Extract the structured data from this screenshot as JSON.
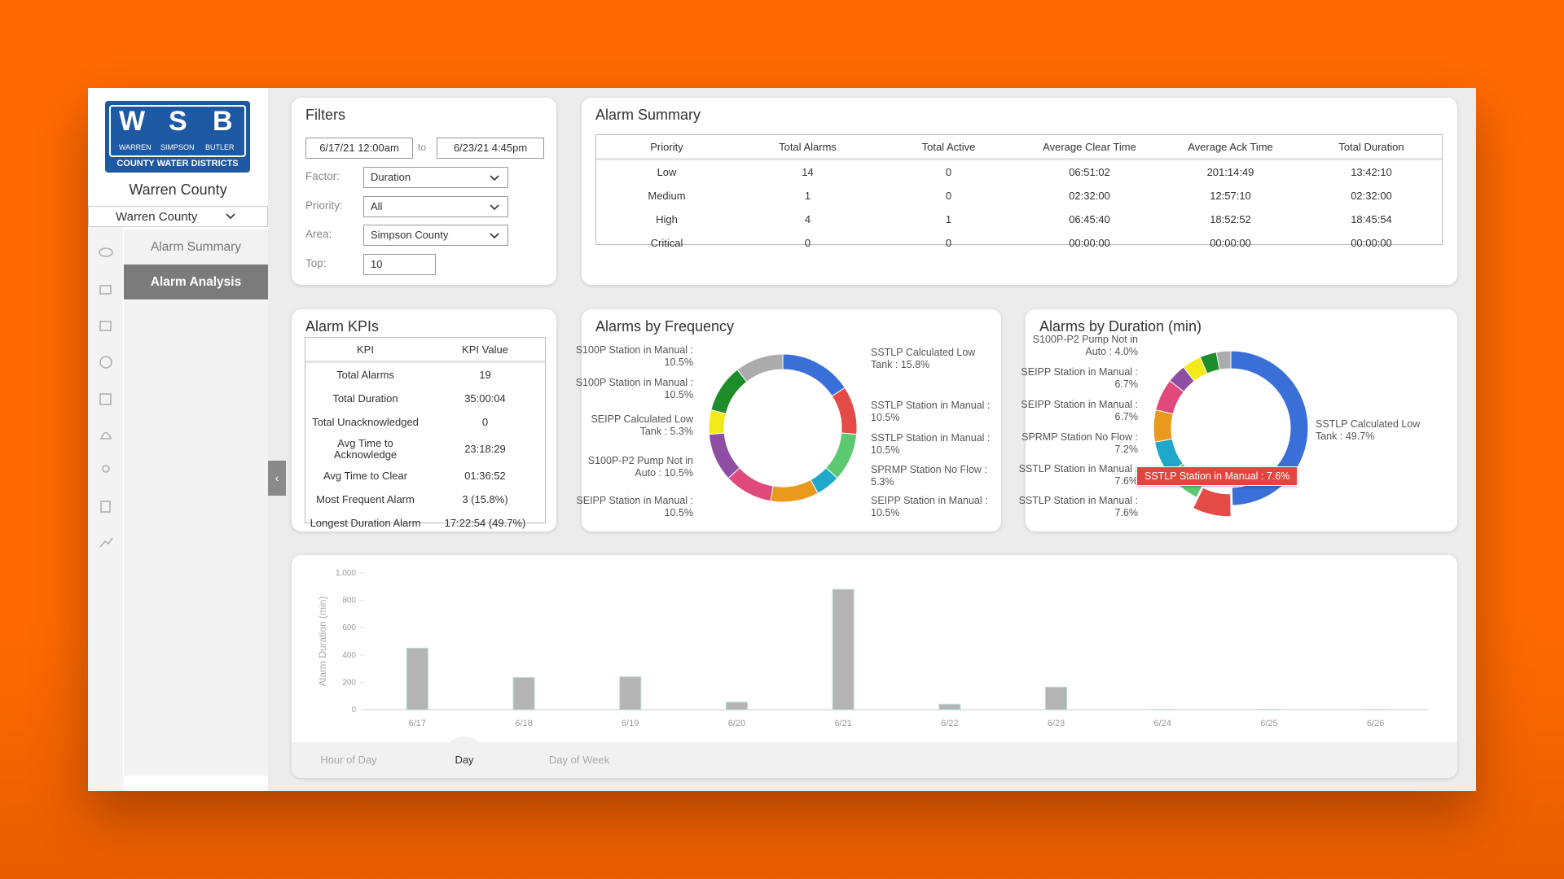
{
  "logo": {
    "initials": [
      "W",
      "S",
      "B"
    ],
    "names": [
      "WARREN",
      "SIMPSON",
      "BUTLER"
    ],
    "tagline": "COUNTY WATER DISTRICTS"
  },
  "sidebar": {
    "title": "Warren County",
    "select": "Warren County",
    "nav": [
      {
        "label": "Alarm Summary",
        "active": false
      },
      {
        "label": "Alarm Analysis",
        "active": true
      }
    ]
  },
  "filters": {
    "title": "Filters",
    "from": "6/17/21 12:00am",
    "separator": "to",
    "to": "6/23/21 4:45pm",
    "fields": [
      {
        "label": "Factor:",
        "value": "Duration",
        "kind": "select"
      },
      {
        "label": "Priority:",
        "value": "All",
        "kind": "select"
      },
      {
        "label": "Area:",
        "value": "Simpson County",
        "kind": "select"
      },
      {
        "label": "Top:",
        "value": "10",
        "kind": "input"
      }
    ]
  },
  "summary": {
    "title": "Alarm Summary",
    "columns": [
      "Priority",
      "Total Alarms",
      "Total Active",
      "Average Clear Time",
      "Average Ack Time",
      "Total Duration"
    ],
    "rows": [
      [
        "Low",
        "14",
        "0",
        "06:51:02",
        "201:14:49",
        "13:42:10"
      ],
      [
        "Medium",
        "1",
        "0",
        "02:32:00",
        "12:57:10",
        "02:32:00"
      ],
      [
        "High",
        "4",
        "1",
        "06:45:40",
        "18:52:52",
        "18:45:54"
      ],
      [
        "Critical",
        "0",
        "0",
        "00:00:00",
        "00:00:00",
        "00:00:00"
      ]
    ]
  },
  "kpis": {
    "title": "Alarm KPIs",
    "columns": [
      "KPI",
      "KPI Value"
    ],
    "rows": [
      [
        "Total Alarms",
        "19"
      ],
      [
        "Total Duration",
        "35:00:04"
      ],
      [
        "Total Unacknowledged",
        "0"
      ],
      [
        "Avg Time to Acknowledge",
        "23:18:29"
      ],
      [
        "Avg Time to Clear",
        "01:36:52"
      ],
      [
        "Most Frequent Alarm",
        "3 (15.8%)"
      ],
      [
        "Longest Duration Alarm",
        "17:22:54 (49.7%)"
      ]
    ]
  },
  "frequency": {
    "type": "pie",
    "title": "Alarms by Frequency",
    "labels": [
      "SSTLP Calculated Low Tank : 15.8%",
      "SSTLP Station in Manual : 10.5%",
      "SSTLP Station in Manual : 10.5%",
      "SPRMP Station No Flow : 5.3%",
      "SEIPP Station in Manual : 10.5%",
      "SEIPP Station in Manual : 10.5%",
      "S100P-P2 Pump Not in Auto : 10.5%",
      "SEIPP Calculated Low Tank : 5.3%",
      "S100P Station in Manual : 10.5%",
      "S100P Station in Manual : 10.5%"
    ],
    "values": [
      15.8,
      10.5,
      10.5,
      5.3,
      10.5,
      10.5,
      10.5,
      5.3,
      10.5,
      10.5
    ],
    "colors": [
      "#3a6fd8",
      "#e44b47",
      "#5cc96f",
      "#1fa8c9",
      "#e99a1c",
      "#e0497c",
      "#8e4fa3",
      "#f3ea1a",
      "#1f8d2c",
      "#ababab"
    ]
  },
  "duration": {
    "type": "pie",
    "title": "Alarms by Duration (min)",
    "labels": [
      "SSTLP Calculated Low Tank : 49.7%",
      "SSTLP Station in Manual : 7.6%",
      "SSTLP Station in Manual : 7.6%",
      "SPRMP Station No Flow : 7.2%",
      "SEIPP Station in Manual : 6.7%",
      "SEIPP Station in Manual : 6.7%",
      "S100P-P2 Pump Not in Auto : 4.0%",
      null,
      null,
      null
    ],
    "values": [
      49.7,
      7.6,
      7.6,
      7.2,
      6.7,
      6.7,
      4.0,
      4.0,
      3.5,
      3.0
    ],
    "colors": [
      "#3a6fd8",
      "#e44b47",
      "#5cc96f",
      "#1fa8c9",
      "#e99a1c",
      "#e0497c",
      "#8e4fa3",
      "#f3ea1a",
      "#1f8d2c",
      "#ababab"
    ],
    "highlight": 1,
    "tooltip": "SSTLP Station in Manual : 7.6%"
  },
  "trend": {
    "type": "bar",
    "y_label": "Alarm Duration (min)",
    "categories": [
      "6/17",
      "6/18",
      "6/19",
      "6/20",
      "6/21",
      "6/22",
      "6/23",
      "6/24",
      "6/25",
      "6/26"
    ],
    "values": [
      450,
      235,
      240,
      55,
      880,
      40,
      165,
      2,
      3,
      2
    ],
    "color": "#b4b4b4",
    "ylim": [
      0,
      1000
    ],
    "yticks": [
      0,
      200,
      400,
      600,
      800,
      {
        "value": 1000,
        "label": "1,000"
      }
    ],
    "tabs": [
      {
        "label": "Hour of Day",
        "active": false
      },
      {
        "label": "Day",
        "active": true
      },
      {
        "label": "Day of Week",
        "active": false
      }
    ]
  }
}
